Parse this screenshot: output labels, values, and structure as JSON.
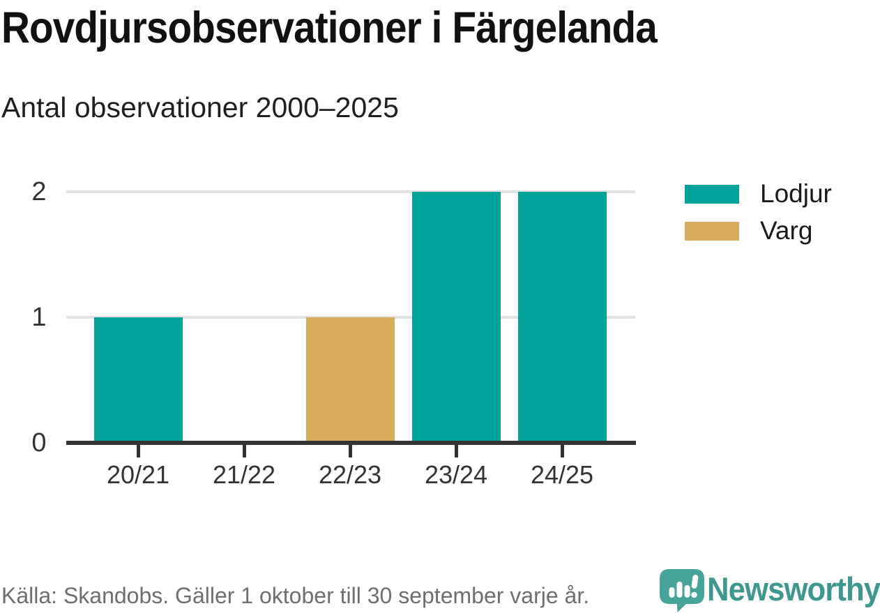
{
  "header": {
    "title": "Rovdjursobservationer i Färgelanda",
    "subtitle": "Antal observationer 2000–2025"
  },
  "chart_data": {
    "type": "bar",
    "title": "Rovdjursobservationer i Färgelanda",
    "subtitle": "Antal observationer 2000–2025",
    "categories": [
      "20/21",
      "21/22",
      "22/23",
      "23/24",
      "24/25"
    ],
    "series": [
      {
        "name": "Lodjur",
        "color": "#00a39a",
        "values": [
          1,
          0,
          0,
          2,
          2
        ]
      },
      {
        "name": "Varg",
        "color": "#d9ab5c",
        "values": [
          0,
          0,
          1,
          0,
          0
        ]
      }
    ],
    "ylim": [
      0,
      2
    ],
    "yticks": [
      0,
      1,
      2
    ],
    "grid": "horizontal",
    "legend_position": "right",
    "legend": [
      {
        "label": "Lodjur",
        "color": "#00a39a"
      },
      {
        "label": "Varg",
        "color": "#d9ab5c"
      }
    ]
  },
  "footer": {
    "source": "Källa: Skandobs. Gäller 1 oktober till 30 september varje år.",
    "brand": "Newsworthy"
  },
  "colors": {
    "lodjur_teal": "#00a39a",
    "varg_tan": "#d9ab5c",
    "axis": "#333333",
    "gridline": "#e2e2e2",
    "heading_text": "#111111",
    "tick_text": "#333333",
    "legend_text": "#1a1a1a",
    "source_text": "#6e6e6e",
    "brand_icon_teal": "#47a49b",
    "brand_wordmark_teal": "#3f988f"
  }
}
